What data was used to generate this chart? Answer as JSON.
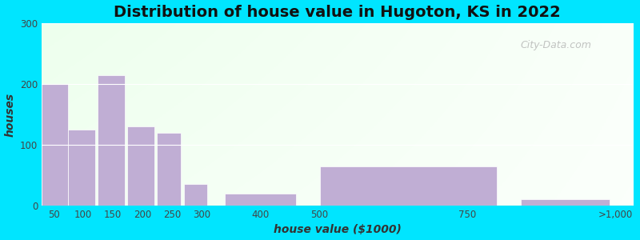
{
  "title": "Distribution of house value in Hugoton, KS in 2022",
  "xlabel": "house value ($1000)",
  "ylabel": "houses",
  "bar_lefts": [
    30,
    75,
    125,
    175,
    225,
    270,
    340,
    500,
    840
  ],
  "bar_rights": [
    75,
    120,
    170,
    220,
    265,
    310,
    460,
    800,
    990
  ],
  "bar_heights": [
    200,
    125,
    215,
    130,
    120,
    35,
    20,
    65,
    10
  ],
  "bar_color": "#c0aed4",
  "ylim": [
    0,
    300
  ],
  "yticks": [
    0,
    100,
    200,
    300
  ],
  "xtick_labels": [
    "50",
    "100",
    "150",
    "200",
    "250",
    "300",
    "400",
    "500",
    "750",
    ">1,000"
  ],
  "xtick_positions": [
    50,
    100,
    150,
    200,
    250,
    300,
    400,
    500,
    750,
    1000
  ],
  "xlim": [
    30,
    1030
  ],
  "outer_bg": "#00e5ff",
  "title_fontsize": 14,
  "axis_label_fontsize": 10,
  "watermark_text": "City-Data.com"
}
